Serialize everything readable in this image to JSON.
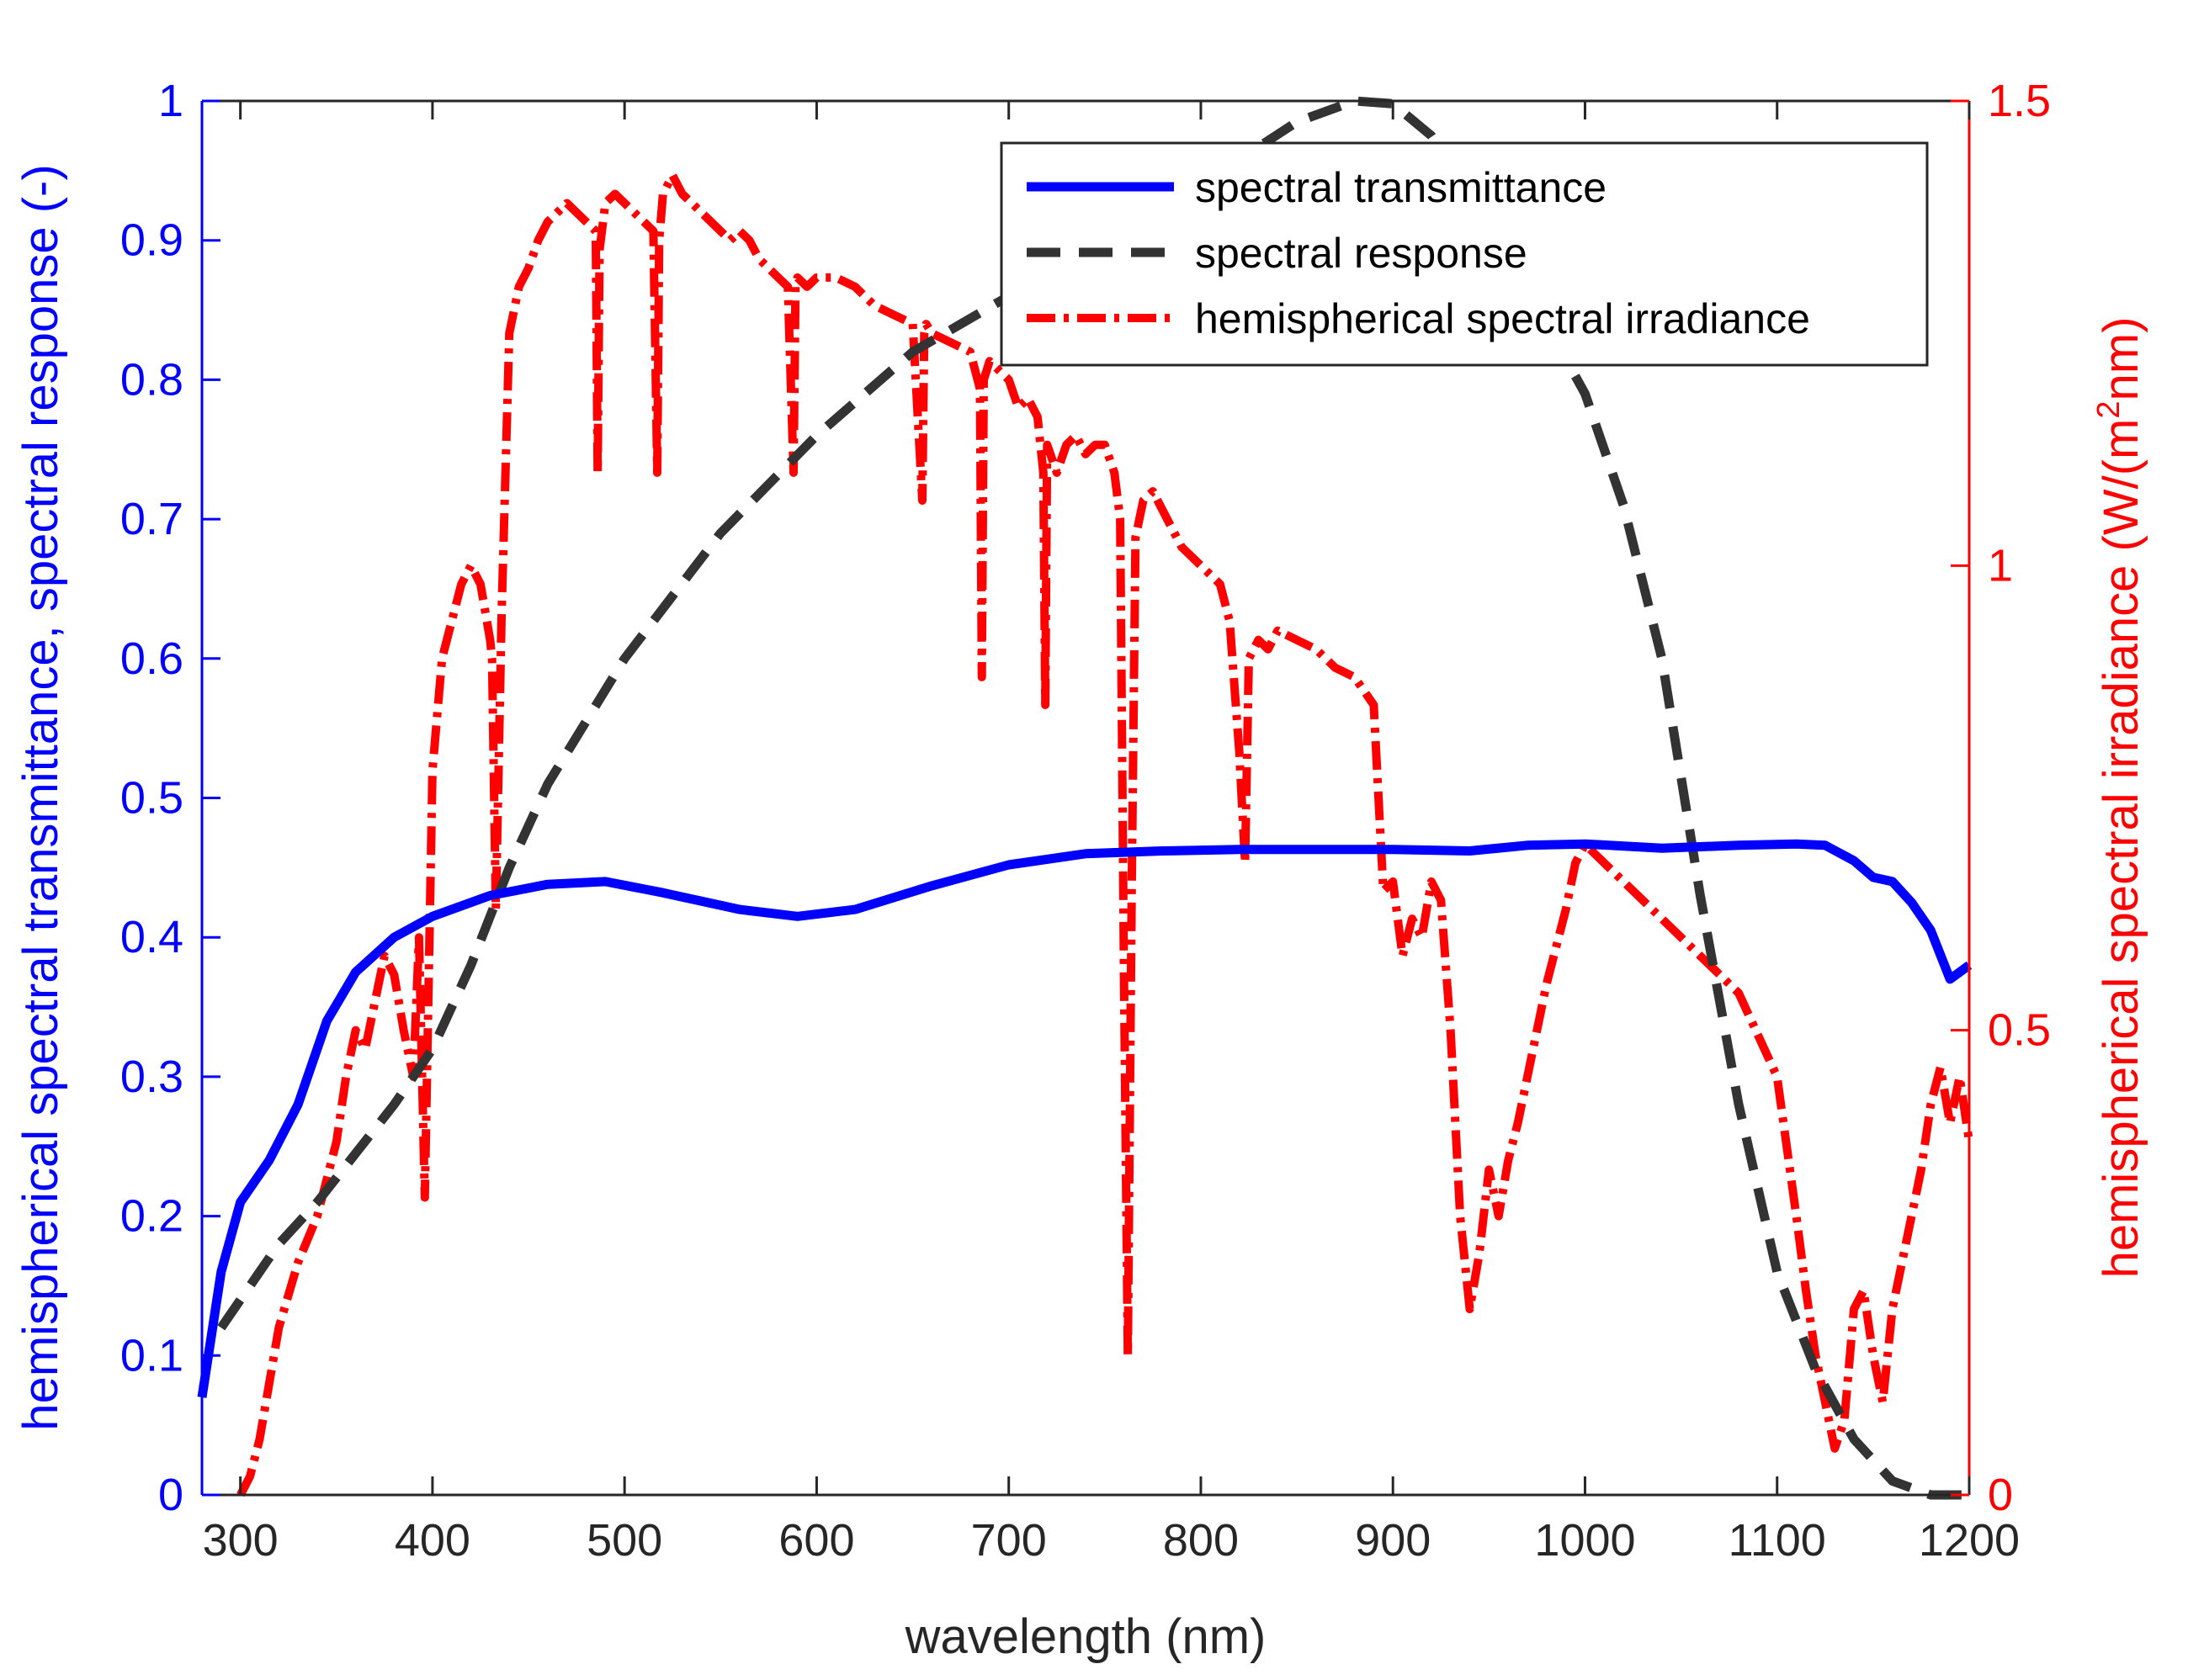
{
  "chart_data": {
    "type": "line",
    "title": "",
    "xlabel": "wavelength (nm)",
    "ylabel_left": "hemispherical spectral transmittance, spectral response (-)",
    "ylabel_right_prefix": "hemispherical spectral irradiance (W/(m",
    "ylabel_right_sup": "2",
    "ylabel_right_suffix": "nm)",
    "xlim": [
      280,
      1200
    ],
    "ylim_left": [
      0,
      1
    ],
    "ylim_right": [
      0,
      1.5
    ],
    "x_ticks": [
      300,
      400,
      500,
      600,
      700,
      800,
      900,
      1000,
      1100,
      1200
    ],
    "x_tick_labels": [
      "300",
      "400",
      "500",
      "600",
      "700",
      "800",
      "900",
      "1000",
      "1100",
      "1200"
    ],
    "y_left_ticks": [
      0,
      0.1,
      0.2,
      0.3,
      0.4,
      0.5,
      0.6,
      0.7,
      0.8,
      0.9,
      1
    ],
    "y_left_tick_labels": [
      "0",
      "0.1",
      "0.2",
      "0.3",
      "0.4",
      "0.5",
      "0.6",
      "0.7",
      "0.8",
      "0.9",
      "1"
    ],
    "y_right_ticks": [
      0,
      0.5,
      1,
      1.5
    ],
    "y_right_tick_labels": [
      "0",
      "0.5",
      "1",
      "1.5"
    ],
    "grid": false,
    "legend_position": "top-right",
    "colors": {
      "left_axis": "#0000ff",
      "right_axis": "#ff0000",
      "transmittance": "#0000ff",
      "response": "#333333",
      "irradiance": "#ff0000",
      "frame": "#262626"
    },
    "series": [
      {
        "name": "spectral transmittance",
        "axis": "left",
        "style": "solid",
        "x": [
          280,
          290,
          300,
          315,
          330,
          345,
          360,
          380,
          400,
          430,
          460,
          490,
          520,
          560,
          590,
          620,
          660,
          700,
          740,
          780,
          820,
          860,
          900,
          940,
          970,
          1000,
          1040,
          1080,
          1110,
          1125,
          1140,
          1150,
          1160,
          1170,
          1180,
          1190,
          1200
        ],
        "values": [
          0.07,
          0.16,
          0.21,
          0.24,
          0.28,
          0.34,
          0.375,
          0.4,
          0.415,
          0.43,
          0.438,
          0.44,
          0.432,
          0.42,
          0.415,
          0.42,
          0.437,
          0.452,
          0.46,
          0.462,
          0.463,
          0.463,
          0.463,
          0.462,
          0.466,
          0.467,
          0.464,
          0.466,
          0.467,
          0.466,
          0.455,
          0.443,
          0.44,
          0.425,
          0.405,
          0.37,
          0.38
        ]
      },
      {
        "name": "spectral response",
        "axis": "left",
        "style": "dashed",
        "x": [
          290,
          300,
          320,
          340,
          360,
          380,
          400,
          420,
          440,
          460,
          500,
          550,
          600,
          650,
          700,
          750,
          800,
          850,
          880,
          900,
          920,
          940,
          960,
          980,
          1000,
          1020,
          1040,
          1060,
          1080,
          1100,
          1120,
          1140,
          1160,
          1180,
          1200
        ],
        "values": [
          0.12,
          0.14,
          0.18,
          0.21,
          0.245,
          0.28,
          0.32,
          0.38,
          0.45,
          0.51,
          0.6,
          0.69,
          0.76,
          0.82,
          0.86,
          0.9,
          0.94,
          0.985,
          1.0,
          0.998,
          0.975,
          0.935,
          0.89,
          0.84,
          0.79,
          0.71,
          0.6,
          0.43,
          0.28,
          0.16,
          0.09,
          0.04,
          0.01,
          0.0,
          0.0
        ]
      },
      {
        "name": "hemispherical spectral irradiance",
        "axis": "right",
        "style": "dash-dot",
        "x": [
          300,
          305,
          310,
          320,
          330,
          340,
          350,
          355,
          360,
          365,
          370,
          375,
          380,
          385,
          390,
          393,
          396,
          400,
          405,
          410,
          415,
          420,
          425,
          430,
          431,
          433,
          436,
          440,
          445,
          450,
          455,
          460,
          465,
          470,
          475,
          480,
          485,
          486,
          487,
          490,
          495,
          500,
          505,
          510,
          515,
          517,
          518,
          520,
          525,
          530,
          535,
          540,
          545,
          550,
          555,
          560,
          565,
          570,
          575,
          580,
          585,
          588,
          589,
          590,
          595,
          600,
          610,
          620,
          630,
          640,
          650,
          655,
          656,
          657,
          660,
          670,
          680,
          685,
          686,
          687,
          690,
          695,
          700,
          705,
          710,
          715,
          718,
          719,
          720,
          725,
          730,
          735,
          740,
          745,
          750,
          755,
          758,
          760,
          762,
          764,
          766,
          770,
          775,
          780,
          790,
          800,
          810,
          815,
          820,
          823,
          825,
          830,
          835,
          840,
          850,
          860,
          870,
          880,
          890,
          895,
          900,
          905,
          910,
          915,
          920,
          925,
          930,
          935,
          940,
          945,
          950,
          955,
          960,
          965,
          970,
          980,
          990,
          995,
          1000,
          1010,
          1020,
          1030,
          1040,
          1060,
          1080,
          1100,
          1110,
          1115,
          1120,
          1125,
          1130,
          1135,
          1140,
          1145,
          1150,
          1155,
          1160,
          1165,
          1170,
          1175,
          1180,
          1185,
          1190,
          1195,
          1200
        ],
        "values": [
          0.0,
          0.02,
          0.06,
          0.18,
          0.25,
          0.3,
          0.38,
          0.45,
          0.5,
          0.48,
          0.53,
          0.58,
          0.56,
          0.5,
          0.45,
          0.6,
          0.32,
          0.78,
          0.9,
          0.94,
          0.98,
          1.0,
          0.98,
          0.92,
          0.9,
          0.63,
          0.95,
          1.25,
          1.3,
          1.32,
          1.35,
          1.37,
          1.38,
          1.39,
          1.38,
          1.37,
          1.36,
          1.1,
          1.34,
          1.39,
          1.4,
          1.39,
          1.38,
          1.37,
          1.36,
          1.1,
          1.35,
          1.4,
          1.42,
          1.4,
          1.39,
          1.38,
          1.37,
          1.36,
          1.35,
          1.36,
          1.35,
          1.33,
          1.32,
          1.31,
          1.3,
          1.1,
          1.3,
          1.31,
          1.3,
          1.31,
          1.31,
          1.3,
          1.28,
          1.27,
          1.26,
          1.07,
          1.25,
          1.26,
          1.25,
          1.24,
          1.23,
          1.19,
          0.88,
          1.2,
          1.22,
          1.21,
          1.2,
          1.17,
          1.18,
          1.16,
          1.1,
          0.85,
          1.13,
          1.1,
          1.13,
          1.14,
          1.12,
          1.13,
          1.13,
          1.1,
          1.05,
          0.55,
          0.15,
          0.65,
          1.03,
          1.07,
          1.08,
          1.06,
          1.02,
          1.0,
          0.98,
          0.94,
          0.8,
          0.68,
          0.9,
          0.92,
          0.91,
          0.93,
          0.92,
          0.91,
          0.89,
          0.88,
          0.85,
          0.65,
          0.66,
          0.58,
          0.62,
          0.6,
          0.66,
          0.64,
          0.5,
          0.3,
          0.2,
          0.26,
          0.35,
          0.3,
          0.36,
          0.4,
          0.45,
          0.55,
          0.63,
          0.68,
          0.7,
          0.68,
          0.66,
          0.64,
          0.62,
          0.58,
          0.54,
          0.45,
          0.3,
          0.22,
          0.15,
          0.1,
          0.05,
          0.08,
          0.2,
          0.22,
          0.15,
          0.1,
          0.2,
          0.25,
          0.3,
          0.35,
          0.42,
          0.46,
          0.4,
          0.45,
          0.38
        ]
      }
    ]
  }
}
